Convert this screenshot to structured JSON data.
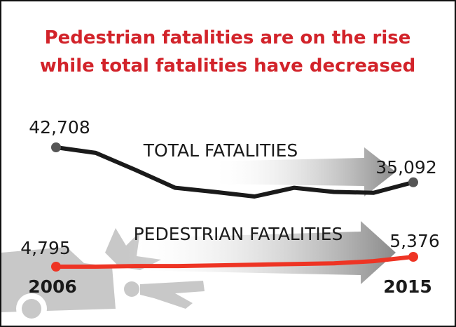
{
  "chart_data": {
    "type": "line",
    "title": "Pedestrian fatalities are on the rise while total fatalities have decreased",
    "categories": [
      "2006",
      null,
      null,
      null,
      null,
      null,
      null,
      null,
      null,
      "2015"
    ],
    "series": [
      {
        "name": "TOTAL FATALITIES",
        "color": "#1a1a1a",
        "marker_color": "#555555",
        "values": [
          42708,
          41500,
          37800,
          33900,
          33000,
          32000,
          33900,
          33000,
          32800,
          35092
        ],
        "value_labels": [
          "42,708",
          null,
          null,
          null,
          null,
          null,
          null,
          null,
          null,
          "35,092"
        ]
      },
      {
        "name": "PEDESTRIAN FATALITIES",
        "color": "#ee3424",
        "marker_color": "#ee3424",
        "values": [
          4795,
          4795,
          4830,
          4830,
          4870,
          4910,
          4950,
          4990,
          5120,
          5376
        ],
        "value_labels": [
          "4,795",
          null,
          null,
          null,
          null,
          null,
          null,
          null,
          null,
          "5,376"
        ]
      }
    ]
  }
}
